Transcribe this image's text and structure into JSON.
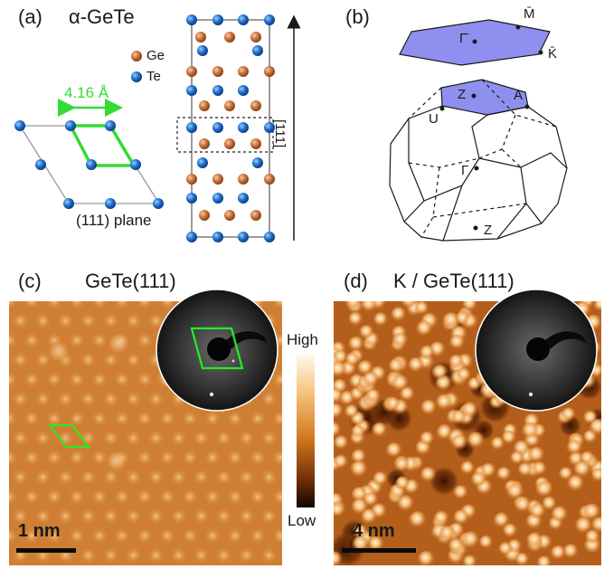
{
  "panel_a": {
    "label": "(a)",
    "title": "α-GeTe",
    "legend": {
      "ge": "Ge",
      "te": "Te"
    },
    "lattice_constant": "4.16 Å",
    "plane_label": "(111) plane",
    "direction_label": "[111]",
    "colors": {
      "ge": "#c8703a",
      "te": "#1f6fc9",
      "unit_cell": "#33dd33"
    }
  },
  "panel_b": {
    "label": "(b)",
    "surface_points": {
      "gamma_bar": "Γ̄",
      "m_bar": "M̄",
      "k_bar": "K̄"
    },
    "bulk_points": {
      "z_top": "Z",
      "a": "A",
      "u": "U",
      "gamma": "Γ",
      "z_bottom": "Z"
    },
    "colors": {
      "surface_bz": "#8f8ff0"
    }
  },
  "panel_c": {
    "label": "(c)",
    "title": "GeTe(111)",
    "scale_bar": "1 nm"
  },
  "colorbar": {
    "high": "High",
    "low": "Low"
  },
  "panel_d": {
    "label": "(d)",
    "title": "K / GeTe(111)",
    "scale_bar": "4 nm"
  }
}
